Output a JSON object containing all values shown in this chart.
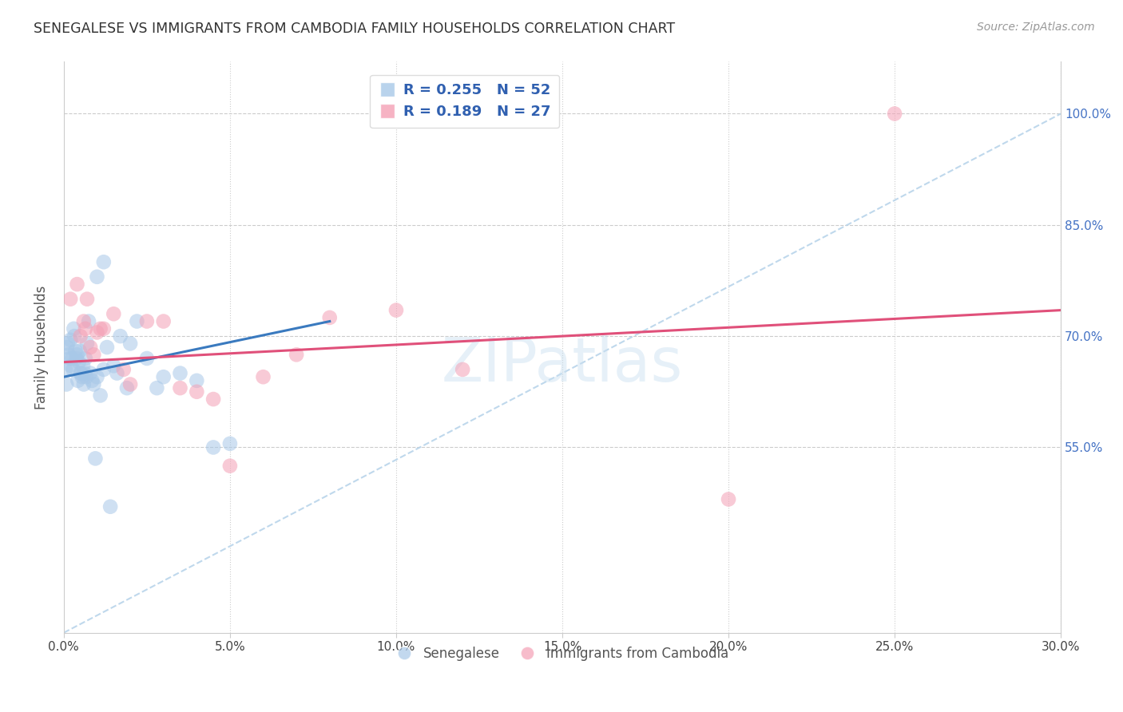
{
  "title": "SENEGALESE VS IMMIGRANTS FROM CAMBODIA FAMILY HOUSEHOLDS CORRELATION CHART",
  "source": "Source: ZipAtlas.com",
  "ylabel": "Family Households",
  "xlim": [
    0.0,
    30.0
  ],
  "ylim": [
    30.0,
    107.0
  ],
  "blue_color": "#a8c8e8",
  "pink_color": "#f4a0b5",
  "blue_line_color": "#3a7abf",
  "pink_line_color": "#e0507a",
  "diag_line_color": "#b8d4ea",
  "legend_R_blue": "0.255",
  "legend_N_blue": "52",
  "legend_R_pink": "0.189",
  "legend_N_pink": "27",
  "legend_label_blue": "Senegalese",
  "legend_label_pink": "Immigrants from Cambodia",
  "ytick_vals": [
    55.0,
    70.0,
    85.0,
    100.0
  ],
  "xtick_vals": [
    0.0,
    5.0,
    10.0,
    15.0,
    20.0,
    25.0,
    30.0
  ],
  "blue_scatter_x": [
    0.05,
    0.08,
    0.1,
    0.12,
    0.15,
    0.18,
    0.2,
    0.22,
    0.25,
    0.28,
    0.3,
    0.32,
    0.35,
    0.38,
    0.4,
    0.42,
    0.45,
    0.48,
    0.5,
    0.52,
    0.55,
    0.58,
    0.6,
    0.62,
    0.65,
    0.68,
    0.7,
    0.75,
    0.8,
    0.85,
    0.9,
    0.95,
    1.0,
    1.1,
    1.2,
    1.3,
    1.4,
    1.5,
    1.6,
    1.7,
    1.9,
    2.0,
    2.2,
    2.5,
    2.8,
    3.0,
    3.5,
    4.0,
    4.5,
    5.0,
    1.0,
    1.2
  ],
  "blue_scatter_y": [
    65.5,
    63.5,
    68.5,
    69.0,
    67.5,
    67.0,
    69.5,
    66.0,
    67.0,
    65.5,
    71.0,
    70.0,
    68.0,
    67.0,
    67.5,
    64.0,
    66.5,
    68.0,
    65.0,
    65.0,
    64.5,
    66.0,
    63.5,
    65.0,
    67.0,
    64.5,
    69.0,
    72.0,
    65.0,
    64.0,
    63.5,
    53.5,
    64.5,
    62.0,
    65.5,
    68.5,
    47.0,
    66.0,
    65.0,
    70.0,
    63.0,
    69.0,
    72.0,
    67.0,
    63.0,
    64.5,
    65.0,
    64.0,
    55.0,
    55.5,
    78.0,
    80.0
  ],
  "pink_scatter_x": [
    0.2,
    0.4,
    0.5,
    0.6,
    0.65,
    0.7,
    0.8,
    0.9,
    1.0,
    1.1,
    1.2,
    1.5,
    1.8,
    2.0,
    2.5,
    3.0,
    3.5,
    4.0,
    4.5,
    5.0,
    6.0,
    7.0,
    8.0,
    10.0,
    12.0,
    20.0,
    25.0
  ],
  "pink_scatter_y": [
    75.0,
    77.0,
    70.0,
    72.0,
    71.0,
    75.0,
    68.5,
    67.5,
    70.5,
    71.0,
    71.0,
    73.0,
    65.5,
    63.5,
    72.0,
    72.0,
    63.0,
    62.5,
    61.5,
    52.5,
    64.5,
    67.5,
    72.5,
    73.5,
    65.5,
    48.0,
    100.0
  ],
  "blue_reg_x0": 0.0,
  "blue_reg_y0": 64.5,
  "blue_reg_x1": 8.0,
  "blue_reg_y1": 72.0,
  "pink_reg_x0": 0.0,
  "pink_reg_y0": 66.5,
  "pink_reg_x1": 30.0,
  "pink_reg_y1": 73.5
}
